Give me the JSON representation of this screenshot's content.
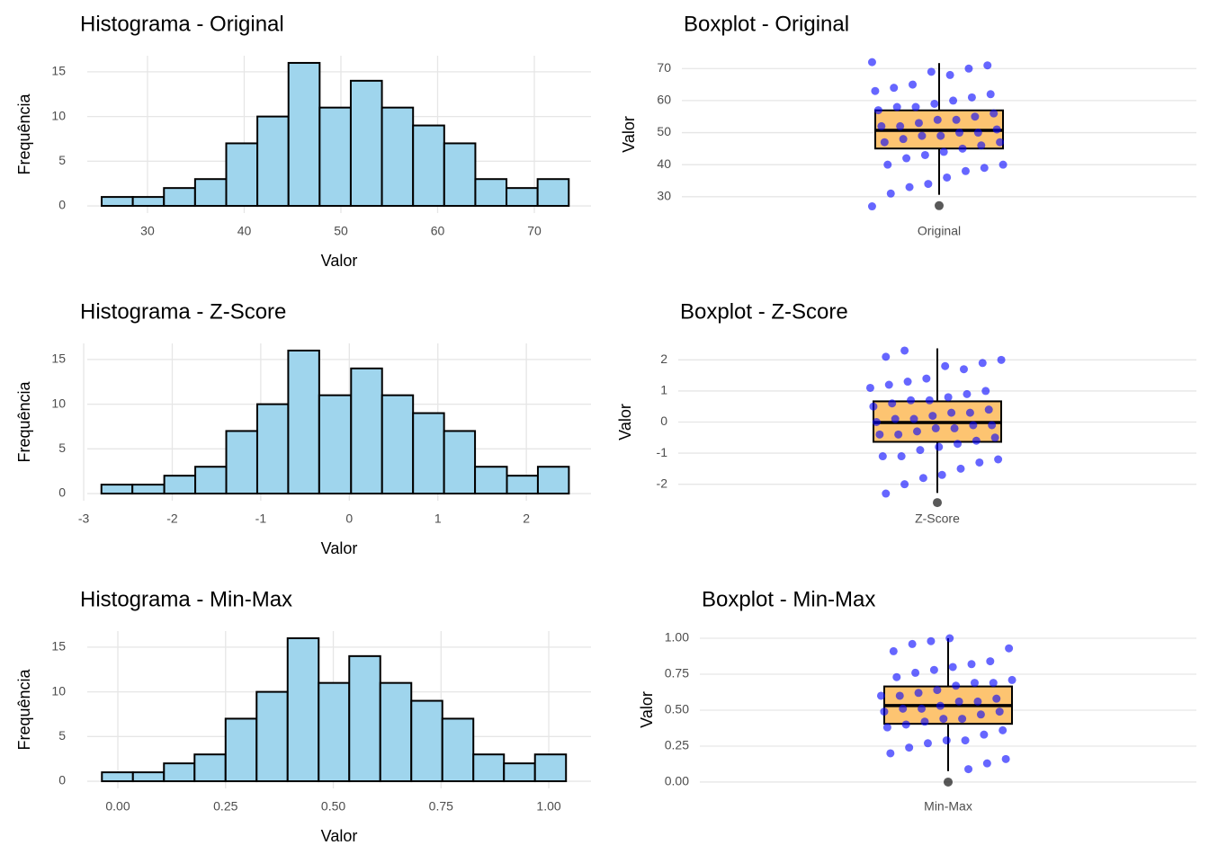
{
  "chart_data": [
    {
      "type": "histogram",
      "title": "Histograma - Original",
      "x_label": "Valor",
      "y_label": "Frequência",
      "bins": [
        25.26,
        28.48,
        31.7,
        34.92,
        38.14,
        41.36,
        44.58,
        47.8,
        51.02,
        54.24,
        57.46,
        60.68,
        63.9,
        67.12,
        70.34,
        73.56
      ],
      "counts": [
        1,
        1,
        2,
        3,
        7,
        10,
        16,
        11,
        14,
        11,
        9,
        7,
        3,
        2,
        3
      ],
      "xlim": [
        23.77,
        75.86
      ],
      "ylim": [
        -0.8,
        16.8
      ],
      "xticks": [
        30,
        40,
        50,
        60,
        70
      ],
      "yticks": [
        0,
        5,
        10,
        15
      ],
      "color": "#9fd5ed",
      "grid": true
    },
    {
      "type": "box",
      "title": "Boxplot - Original",
      "y_label": "Valor",
      "categories": [
        "Original"
      ],
      "box": {
        "whisker_low": 30.6,
        "q1": 45.04,
        "median": 50.7,
        "q3": 56.95,
        "whisker_high": 71.7
      },
      "outliers": [
        27.2
      ],
      "points": [
        72,
        71,
        70,
        68,
        69,
        65,
        64,
        63,
        62,
        61,
        60,
        59,
        58,
        58,
        57,
        56,
        55,
        54,
        54,
        53,
        52,
        52,
        51,
        50,
        50,
        49,
        49,
        48,
        47,
        47,
        46,
        45,
        44,
        43,
        42,
        40,
        40,
        39,
        38,
        36,
        34,
        33,
        31,
        27
      ],
      "ylim": [
        24.9,
        74
      ],
      "yticks": [
        30,
        40,
        50,
        60,
        70
      ],
      "color": "#fdc471",
      "point_color": "#0000ff",
      "grid": true
    },
    {
      "type": "histogram",
      "title": "Histograma - Z-Score",
      "x_label": "Valor",
      "y_label": "Frequência",
      "bins": [
        -2.8,
        -2.45,
        -2.09,
        -1.74,
        -1.39,
        -1.04,
        -0.69,
        -0.34,
        0.02,
        0.37,
        0.72,
        1.07,
        1.42,
        1.78,
        2.13,
        2.48
      ],
      "counts": [
        1,
        1,
        2,
        3,
        7,
        10,
        16,
        11,
        14,
        11,
        9,
        7,
        3,
        2,
        3
      ],
      "xlim": [
        -2.96,
        2.73
      ],
      "ylim": [
        -0.8,
        16.8
      ],
      "xticks": [
        -3,
        -2,
        -1,
        0,
        1,
        2
      ],
      "yticks": [
        0,
        5,
        10,
        15
      ],
      "color": "#9fd5ed",
      "grid": true
    },
    {
      "type": "box",
      "title": "Boxplot - Z-Score",
      "y_label": "Valor",
      "categories": [
        "Z-Score"
      ],
      "box": {
        "whisker_low": -2.28,
        "q1": -0.636,
        "median": -0.016,
        "q3": 0.667,
        "whisker_high": 2.37
      },
      "outliers": [
        -2.59
      ],
      "points": [
        2.3,
        2.1,
        2.0,
        1.9,
        1.7,
        1.8,
        1.4,
        1.3,
        1.2,
        1.1,
        1.0,
        0.9,
        0.8,
        0.7,
        0.7,
        0.6,
        0.5,
        0.4,
        0.3,
        0.3,
        0.2,
        0.1,
        0.1,
        0.0,
        -0.1,
        -0.1,
        -0.2,
        -0.2,
        -0.3,
        -0.4,
        -0.4,
        -0.5,
        -0.6,
        -0.7,
        -0.8,
        -0.9,
        -1.1,
        -1.1,
        -1.2,
        -1.3,
        -1.5,
        -1.7,
        -1.8,
        -2.0,
        -2.3
      ],
      "ylim": [
        -2.53,
        2.53
      ],
      "yticks": [
        -2,
        -1,
        0,
        1,
        2
      ],
      "color": "#fdc471",
      "point_color": "#0000ff",
      "grid": true
    },
    {
      "type": "histogram",
      "title": "Histograma - Min-Max",
      "x_label": "Valor",
      "y_label": "Frequência",
      "bins": [
        -0.037,
        0.035,
        0.107,
        0.178,
        0.25,
        0.322,
        0.394,
        0.466,
        0.537,
        0.609,
        0.681,
        0.753,
        0.825,
        0.896,
        0.968,
        1.04
      ],
      "counts": [
        1,
        1,
        2,
        3,
        7,
        10,
        16,
        11,
        14,
        11,
        9,
        7,
        3,
        2,
        3
      ],
      "xlim": [
        -0.071,
        1.098
      ],
      "ylim": [
        -0.8,
        16.8
      ],
      "xticks": [
        {
          "value": 0,
          "label": "0.00"
        },
        {
          "value": 0.25,
          "label": "0.25"
        },
        {
          "value": 0.5,
          "label": "0.50"
        },
        {
          "value": 0.75,
          "label": "0.75"
        },
        {
          "value": 1,
          "label": "1.00"
        }
      ],
      "yticks": [
        0,
        5,
        10,
        15
      ],
      "color": "#9fd5ed",
      "grid": true
    },
    {
      "type": "box",
      "title": "Boxplot - Min-Max",
      "y_label": "Valor",
      "categories": [
        "Min-Max"
      ],
      "box": {
        "whisker_low": 0.076,
        "q1": 0.405,
        "median": 0.532,
        "q3": 0.665,
        "whisker_high": 1.0
      },
      "outliers": [
        0
      ],
      "points": [
        1.0,
        0.98,
        0.96,
        0.91,
        0.93,
        0.84,
        0.82,
        0.8,
        0.78,
        0.76,
        0.73,
        0.71,
        0.69,
        0.69,
        0.67,
        0.64,
        0.62,
        0.6,
        0.6,
        0.58,
        0.56,
        0.56,
        0.53,
        0.51,
        0.51,
        0.49,
        0.49,
        0.47,
        0.44,
        0.44,
        0.42,
        0.4,
        0.38,
        0.36,
        0.33,
        0.29,
        0.29,
        0.27,
        0.24,
        0.2,
        0.16,
        0.13,
        0.09
      ],
      "ylim": [
        -0.044,
        1.05
      ],
      "yticks": [
        {
          "value": 0,
          "label": "0.00"
        },
        {
          "value": 0.25,
          "label": "0.25"
        },
        {
          "value": 0.5,
          "label": "0.50"
        },
        {
          "value": 0.75,
          "label": "0.75"
        },
        {
          "value": 1,
          "label": "1.00"
        }
      ],
      "color": "#fdc471",
      "point_color": "#0000ff",
      "grid": true
    }
  ]
}
